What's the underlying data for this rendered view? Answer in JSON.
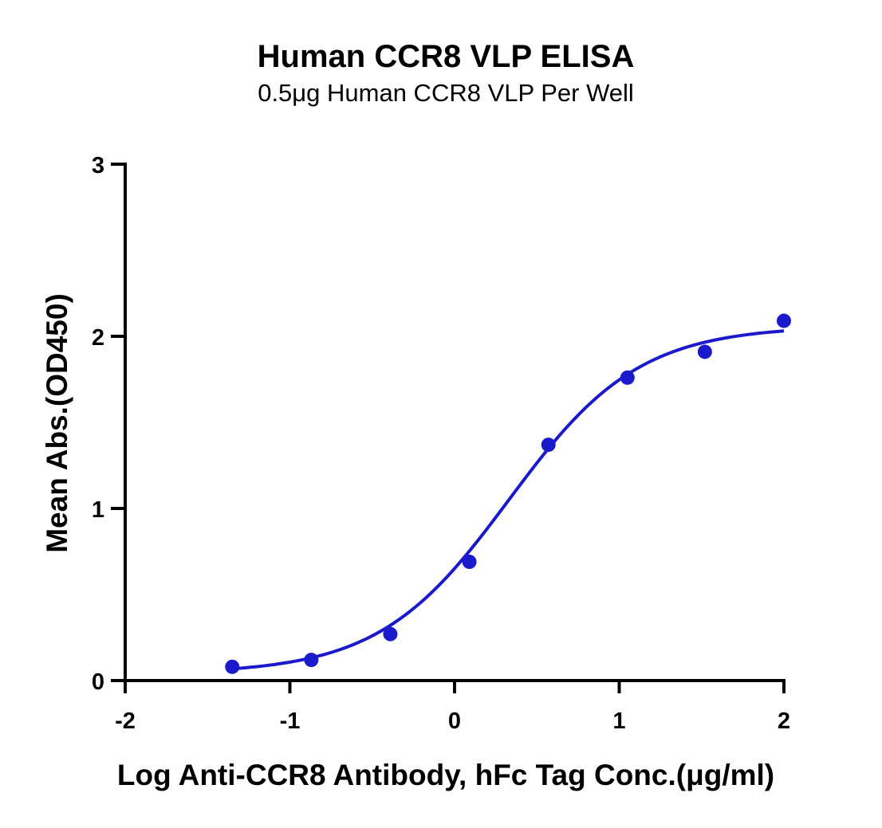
{
  "chart_data": {
    "type": "scatter",
    "title": "Human CCR8 VLP ELISA",
    "subtitle": "0.5μg Human CCR8 VLP Per Well",
    "xlabel": "Log Anti-CCR8 Antibody, hFc Tag Conc.(μg/ml)",
    "ylabel": "Mean Abs.(OD450)",
    "xlim": [
      -2,
      2
    ],
    "ylim": [
      0,
      3
    ],
    "x_ticks": [
      -2,
      -1,
      0,
      1,
      2
    ],
    "y_ticks": [
      0,
      1,
      2,
      3
    ],
    "grid": false,
    "color": "#1a1acc",
    "series": [
      {
        "x": [
          -1.35,
          -0.87,
          -0.39,
          0.09,
          0.57,
          1.05,
          1.52,
          2.0
        ],
        "y": [
          0.08,
          0.12,
          0.27,
          0.69,
          1.37,
          1.76,
          1.91,
          2.09
        ],
        "fit": {
          "model": "4PL",
          "bottom": 0.04,
          "top": 2.06,
          "log_ec50": 0.33,
          "hill": 1.1,
          "x_range": [
            -1.35,
            2.0
          ]
        }
      }
    ]
  }
}
